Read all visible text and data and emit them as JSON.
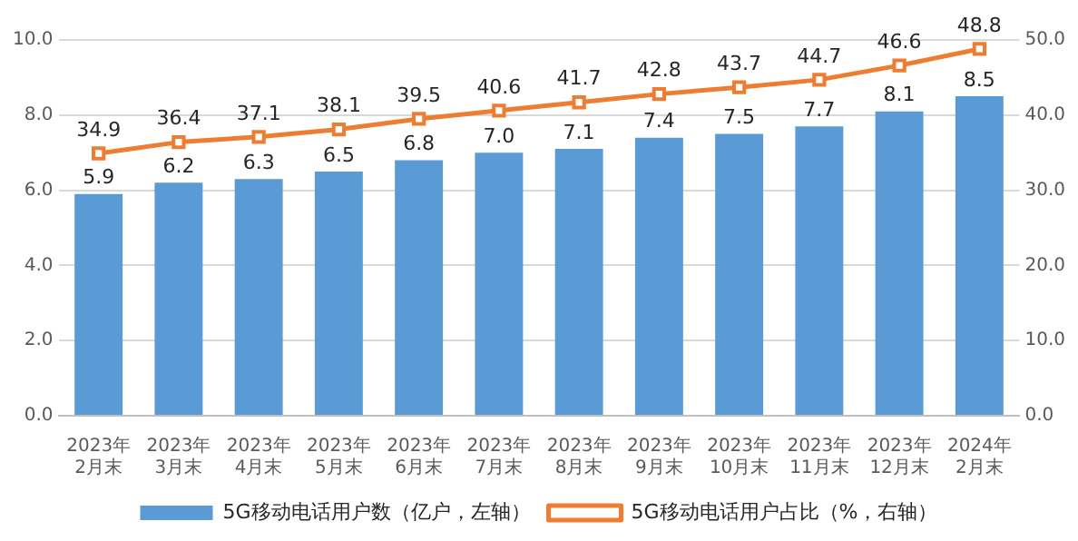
{
  "chart_data": {
    "type": "bar",
    "categories": [
      "2023年\n2月末",
      "2023年\n3月末",
      "2023年\n4月末",
      "2023年\n5月末",
      "2023年\n6月末",
      "2023年\n7月末",
      "2023年\n8月末",
      "2023年\n9月末",
      "2023年\n10月末",
      "2023年\n11月末",
      "2023年\n12月末",
      "2024年\n2月末"
    ],
    "series": [
      {
        "name": "5G移动电话用户数（亿户，左轴）",
        "color": "#5b9bd5",
        "values": [
          5.9,
          6.2,
          6.3,
          6.5,
          6.8,
          7.0,
          7.1,
          7.4,
          7.5,
          7.7,
          8.1,
          8.5
        ],
        "value_labels": [
          "5.9",
          "6.2",
          "6.3",
          "6.5",
          "6.8",
          "7.0",
          "7.1",
          "7.4",
          "7.5",
          "7.7",
          "8.1",
          "8.5"
        ]
      },
      {
        "name": "5G移动电话用户占比（%，右轴）",
        "type": "line",
        "axis": "y2",
        "color": "#ed7d31",
        "marker": "square",
        "values": [
          34.9,
          36.4,
          37.1,
          38.1,
          39.5,
          40.6,
          41.7,
          42.8,
          43.7,
          44.7,
          46.6,
          48.8
        ],
        "value_labels": [
          "34.9",
          "36.4",
          "37.1",
          "38.1",
          "39.5",
          "40.6",
          "41.7",
          "42.8",
          "43.7",
          "44.7",
          "46.6",
          "48.8"
        ]
      }
    ],
    "ylim": [
      0,
      10
    ],
    "yticks": [
      {
        "value": 0,
        "label": "0.0"
      },
      {
        "value": 2,
        "label": "2.0"
      },
      {
        "value": 4,
        "label": "4.0"
      },
      {
        "value": 6,
        "label": "6.0"
      },
      {
        "value": 8,
        "label": "8.0"
      },
      {
        "value": 10,
        "label": "10.0"
      }
    ],
    "y2lim": [
      0,
      50
    ],
    "y2ticks": [
      {
        "value": 0,
        "label": "0.0"
      },
      {
        "value": 10,
        "label": "10.0"
      },
      {
        "value": 20,
        "label": "20.0"
      },
      {
        "value": 30,
        "label": "30.0"
      },
      {
        "value": 40,
        "label": "40.0"
      },
      {
        "value": 50,
        "label": "50.0"
      }
    ],
    "grid": "y",
    "legend": "bottom"
  }
}
